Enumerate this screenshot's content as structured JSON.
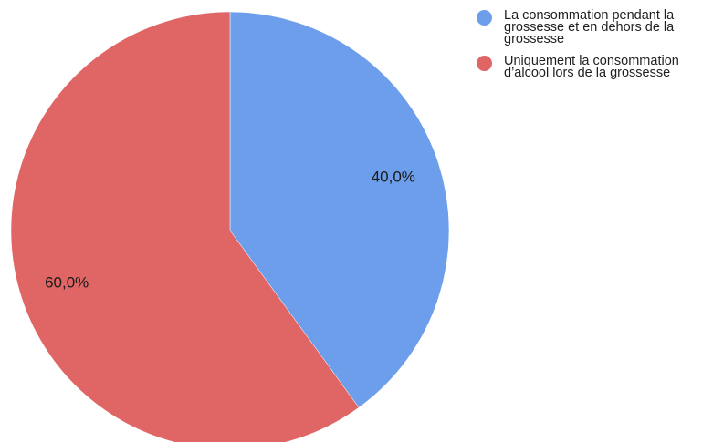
{
  "chart_data": {
    "type": "pie",
    "categories": [
      "La consommation pendant la grossesse et en dehors de la grossesse",
      "Uniquement la consommation d’alcool lors de la grossesse"
    ],
    "values": [
      40.0,
      60.0
    ],
    "data_labels": [
      "40,0%",
      "60,0%"
    ],
    "colors": [
      "#6d9eeb",
      "#e06666"
    ],
    "legend_position": "top-right",
    "start_angle": "top, clockwise"
  },
  "legend": {
    "items": [
      {
        "lines": [
          "La consommation pendant la",
          "grossesse et en dehors de la",
          "grossesse"
        ],
        "color": "#6d9eeb"
      },
      {
        "lines": [
          "Uniquement la consommation",
          "d’alcool lors de la grossesse"
        ],
        "color": "#e06666"
      }
    ]
  }
}
